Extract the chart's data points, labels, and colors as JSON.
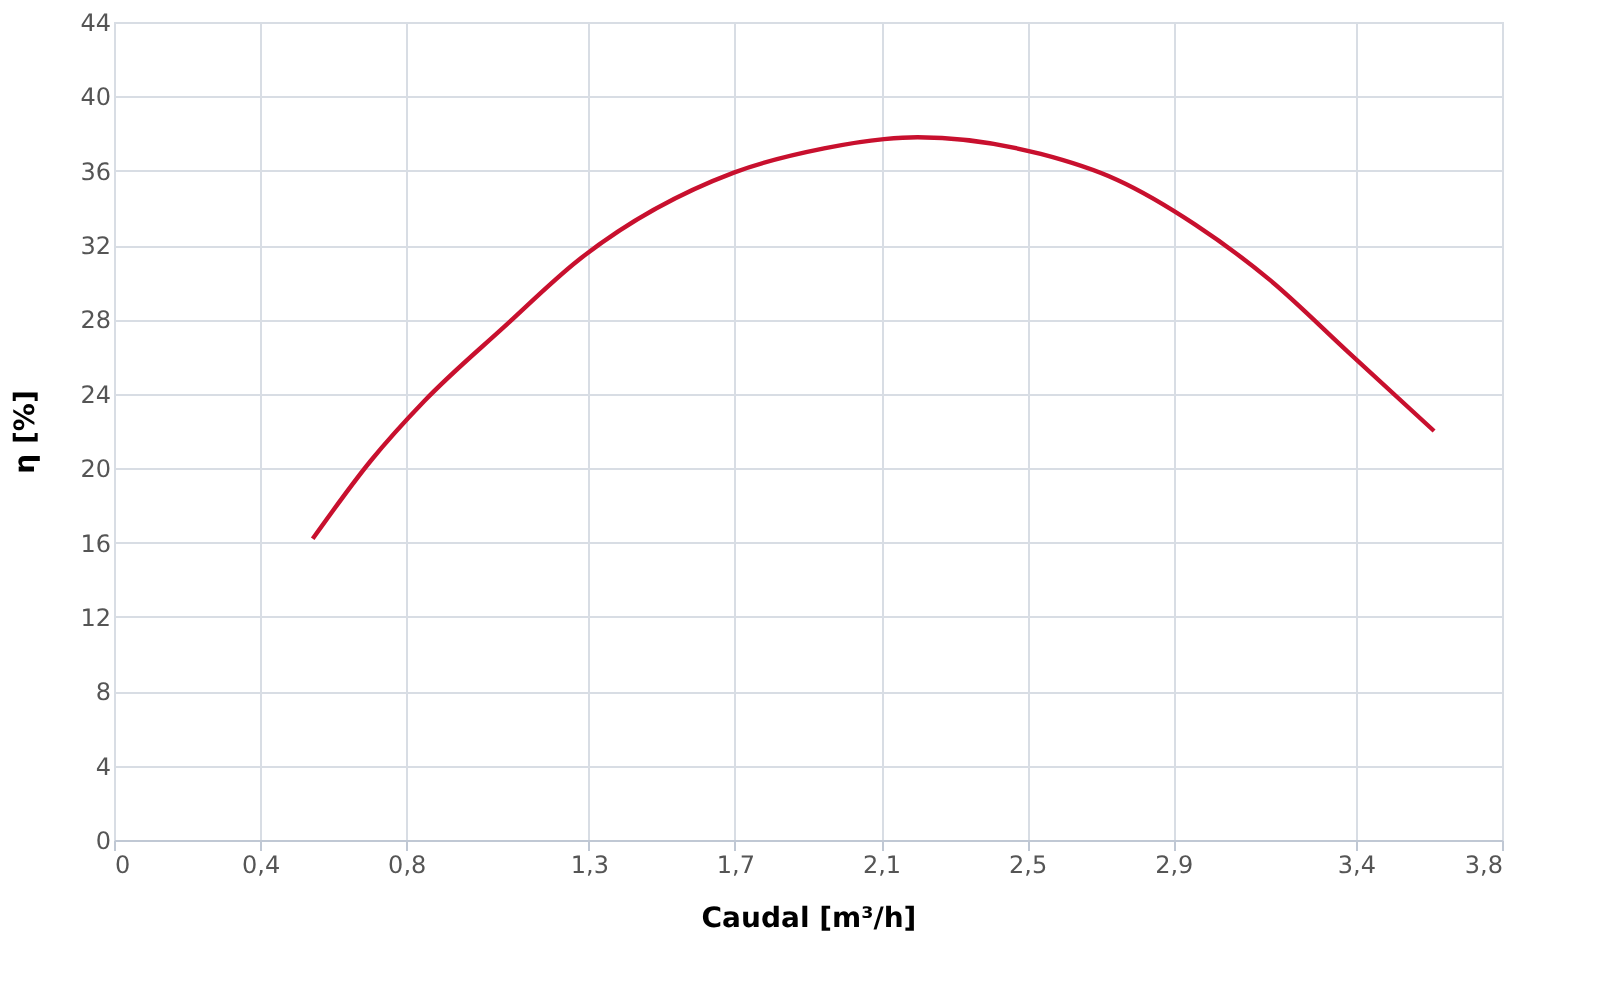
{
  "chart_data": {
    "type": "line",
    "xlabel": "Caudal [m³/h]",
    "ylabel": "η [%]",
    "x": [
      0.544,
      0.703,
      0.849,
      1.068,
      1.272,
      1.697,
      1.944,
      2.108,
      2.2,
      2.537,
      2.747,
      2.96,
      3.166,
      3.376,
      3.614
    ],
    "series": [
      {
        "color": "#c8102e",
        "values": [
          16.2,
          20.4,
          23.6,
          27.6,
          31.2,
          35.9,
          37.2,
          37.7,
          37.8,
          36.9,
          35.5,
          33.1,
          30.1,
          26.3,
          22.0
        ]
      }
    ],
    "xlim": [
      0,
      3.8
    ],
    "xticks": [
      0,
      {
        "value": 0.4,
        "label": "0,4"
      },
      {
        "value": 0.8,
        "label": "0,8"
      },
      {
        "value": 1.3,
        "label": "1,3"
      },
      {
        "value": 1.7,
        "label": "1,7"
      },
      {
        "value": 2.1,
        "label": "2,1"
      },
      {
        "value": 2.5,
        "label": "2,5"
      },
      {
        "value": 2.9,
        "label": "2,9"
      },
      {
        "value": 3.4,
        "label": "3,4"
      },
      {
        "value": 3.8,
        "label": "3,8"
      }
    ],
    "ylim": [
      0,
      44
    ],
    "yticks": [
      0,
      4,
      8,
      12,
      16,
      20,
      24,
      28,
      32,
      36,
      40,
      44
    ],
    "grid": true,
    "marker": "none",
    "line_style": "solid"
  }
}
